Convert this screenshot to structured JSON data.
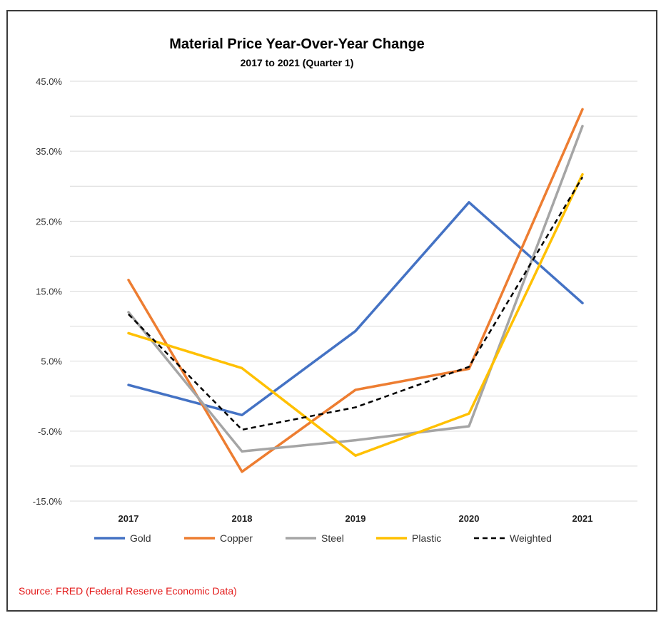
{
  "chart_data": {
    "type": "line",
    "title": "Material Price Year-Over-Year Change",
    "subtitle": "2017 to 2021 (Quarter 1)",
    "categories": [
      "2017",
      "2018",
      "2019",
      "2020",
      "2021"
    ],
    "ylim": [
      -15,
      45
    ],
    "yticks": [
      -15,
      -5,
      5,
      15,
      25,
      35,
      45
    ],
    "ytick_labels": [
      "-15.0%",
      "-5.0%",
      "5.0%",
      "15.0%",
      "25.0%",
      "35.0%",
      "45.0%"
    ],
    "grid": true,
    "legend_position": "bottom",
    "series": [
      {
        "name": "Gold",
        "color": "#4472c4",
        "dashed": false,
        "values": [
          1.6,
          -2.7,
          9.3,
          27.7,
          13.3
        ]
      },
      {
        "name": "Copper",
        "color": "#ed7d31",
        "dashed": false,
        "values": [
          16.6,
          -10.8,
          0.9,
          3.9,
          41.0
        ]
      },
      {
        "name": "Steel",
        "color": "#a5a5a5",
        "dashed": false,
        "values": [
          12.0,
          -7.9,
          -6.3,
          -4.3,
          38.6
        ]
      },
      {
        "name": "Plastic",
        "color": "#ffc000",
        "dashed": false,
        "values": [
          9.0,
          4.0,
          -8.5,
          -2.5,
          31.7
        ]
      },
      {
        "name": "Weighted",
        "color": "#000000",
        "dashed": true,
        "values": [
          11.7,
          -4.8,
          -1.6,
          4.2,
          31.3
        ]
      }
    ]
  },
  "source": "Source: FRED (Federal Reserve Economic Data)"
}
